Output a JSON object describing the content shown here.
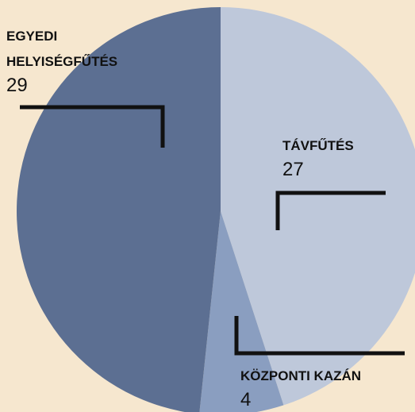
{
  "chart_data": {
    "type": "pie",
    "categories": [
      "TÁVFŰTÉS",
      "KÖZPONTI KAZÁN",
      "EGYEDI HELYISÉGFŰTÉS"
    ],
    "values": [
      27,
      4,
      29
    ],
    "colors": [
      "#bec8da",
      "#8a9ec0",
      "#5c6f92"
    ]
  }
}
